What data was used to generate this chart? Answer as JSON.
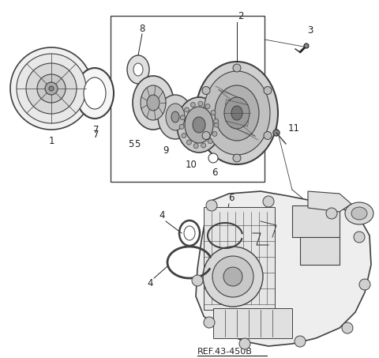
{
  "bg_color": "#ffffff",
  "line_color": "#404040",
  "dark_color": "#222222",
  "ref_text": "REF.43-450B",
  "figsize": [
    4.8,
    4.53
  ],
  "dpi": 100
}
